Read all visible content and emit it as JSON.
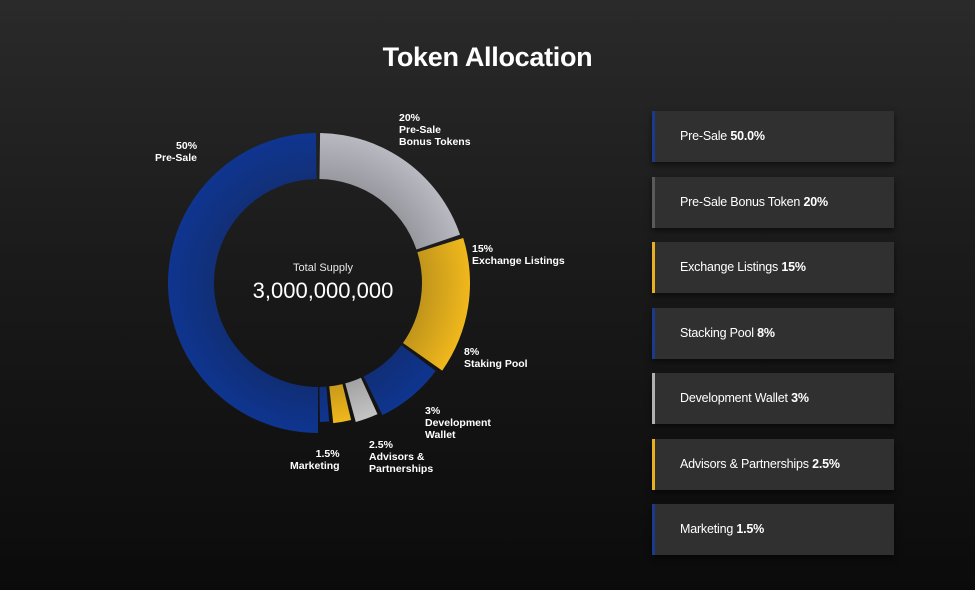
{
  "chart_data": {
    "type": "pie",
    "title": "Token Allocation",
    "center_label": "Total Supply",
    "center_value": "3,000,000,000",
    "slices": [
      {
        "name": "Pre-Sale",
        "value": 50,
        "pct_label": "50%",
        "label_lines": [
          "Pre-Sale"
        ],
        "color": "#0f3590"
      },
      {
        "name": "Pre-Sale Bonus Tokens",
        "value": 20,
        "pct_label": "20%",
        "label_lines": [
          "Pre-Sale",
          "Bonus Tokens"
        ],
        "color": "#b9b9c2"
      },
      {
        "name": "Exchange Listings",
        "value": 15,
        "pct_label": "15%",
        "label_lines": [
          "Exchange Listings"
        ],
        "color": "#f0b81c"
      },
      {
        "name": "Staking Pool",
        "value": 8,
        "pct_label": "8%",
        "label_lines": [
          "Staking Pool"
        ],
        "color": "#0f3590"
      },
      {
        "name": "Development Wallet",
        "value": 3,
        "pct_label": "3%",
        "label_lines": [
          "Development",
          "Wallet"
        ],
        "color": "#c4c4c4"
      },
      {
        "name": "Advisors & Partnerships",
        "value": 2.5,
        "pct_label": "2.5%",
        "label_lines": [
          "Advisors &",
          "Partnerships"
        ],
        "color": "#f0b81c"
      },
      {
        "name": "Marketing",
        "value": 1.5,
        "pct_label": "1.5%",
        "label_lines": [
          "Marketing"
        ],
        "color": "#0f3590"
      }
    ]
  },
  "legend": [
    {
      "label": "Pre-Sale",
      "value": "50.0%",
      "accent": "#1b3a8c"
    },
    {
      "label": "Pre-Sale Bonus Token",
      "value": "20%",
      "accent": "#5a5a5a"
    },
    {
      "label": "Exchange Listings",
      "value": "15%",
      "accent": "#e6b020"
    },
    {
      "label": "Stacking Pool",
      "value": "8%",
      "accent": "#1b3a8c"
    },
    {
      "label": "Development Wallet",
      "value": "3%",
      "accent": "#b0b0b0"
    },
    {
      "label": "Advisors & Partnerships",
      "value": "2.5%",
      "accent": "#e6b020"
    },
    {
      "label": "Marketing",
      "value": "1.5%",
      "accent": "#1b3a8c"
    }
  ]
}
